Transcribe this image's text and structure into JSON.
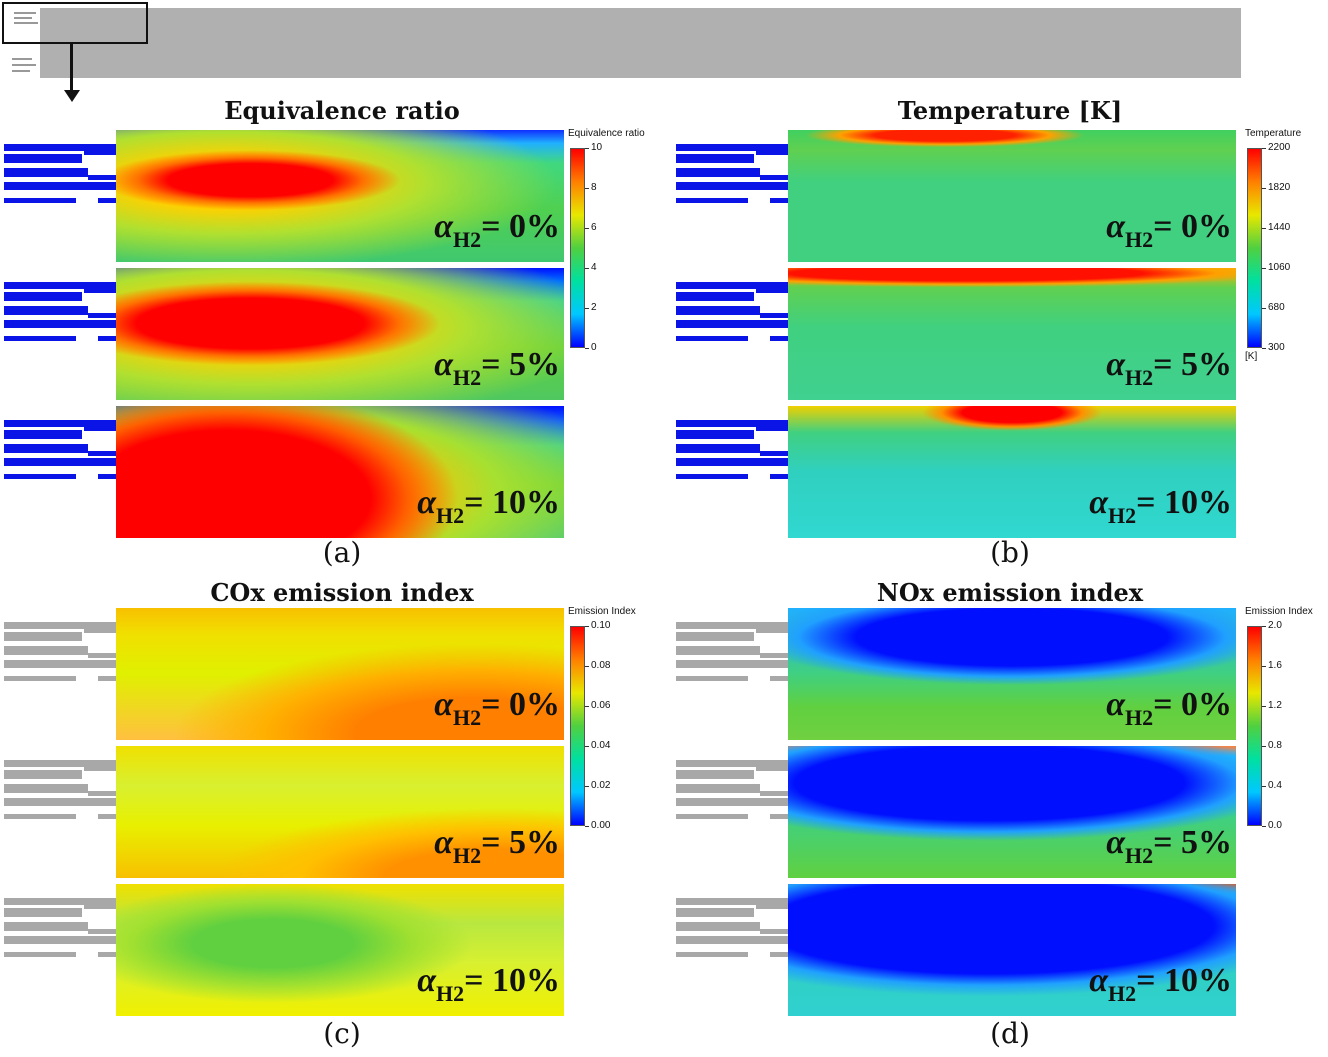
{
  "panels": [
    {
      "id": "a",
      "title": "Equivalence ratio",
      "label": "(a)",
      "colorbar": {
        "title": "Equivalence ratio",
        "ticks": [
          "10",
          "8",
          "6",
          "4",
          "2",
          "0"
        ],
        "unit": ""
      },
      "cases": [
        {
          "alpha_symbol": "α",
          "subscript": "H2",
          "value": "= 0%"
        },
        {
          "alpha_symbol": "α",
          "subscript": "H2",
          "value": "= 5%"
        },
        {
          "alpha_symbol": "α",
          "subscript": "H2",
          "value": "= 10%"
        }
      ]
    },
    {
      "id": "b",
      "title": "Temperature [K]",
      "label": "(b)",
      "colorbar": {
        "title": "Temperature",
        "ticks": [
          "2200",
          "1820",
          "1440",
          "1060",
          "680",
          "300"
        ],
        "unit": "[K]"
      },
      "cases": [
        {
          "alpha_symbol": "α",
          "subscript": "H2",
          "value": "= 0%"
        },
        {
          "alpha_symbol": "α",
          "subscript": "H2",
          "value": "= 5%"
        },
        {
          "alpha_symbol": "α",
          "subscript": "H2",
          "value": "= 10%"
        }
      ]
    },
    {
      "id": "c",
      "title": "COx emission index",
      "label": "(c)",
      "colorbar": {
        "title": "Emission Index",
        "ticks": [
          "0.10",
          "0.08",
          "0.06",
          "0.04",
          "0.02",
          "0.00"
        ],
        "unit": ""
      },
      "cases": [
        {
          "alpha_symbol": "α",
          "subscript": "H2",
          "value": "= 0%"
        },
        {
          "alpha_symbol": "α",
          "subscript": "H2",
          "value": "= 5%"
        },
        {
          "alpha_symbol": "α",
          "subscript": "H2",
          "value": "= 10%"
        }
      ]
    },
    {
      "id": "d",
      "title": "NOx emission index",
      "label": "(d)",
      "colorbar": {
        "title": "Emission Index",
        "ticks": [
          "2.0",
          "1.6",
          "1.2",
          "0.8",
          "0.4",
          "0.0"
        ],
        "unit": ""
      },
      "cases": [
        {
          "alpha_symbol": "α",
          "subscript": "H2",
          "value": "= 0%"
        },
        {
          "alpha_symbol": "α",
          "subscript": "H2",
          "value": "= 5%"
        },
        {
          "alpha_symbol": "α",
          "subscript": "H2",
          "value": "= 10%"
        }
      ]
    }
  ],
  "colors": {
    "colormap": [
      "#0000ff",
      "#00c8ff",
      "#00e0a0",
      "#50d040",
      "#e8e800",
      "#ff8000",
      "#ff0000"
    ],
    "inlet_blue": "#0a14e6",
    "inlet_gray": "#a8a8a8",
    "header_gray": "#b0b0b0"
  }
}
